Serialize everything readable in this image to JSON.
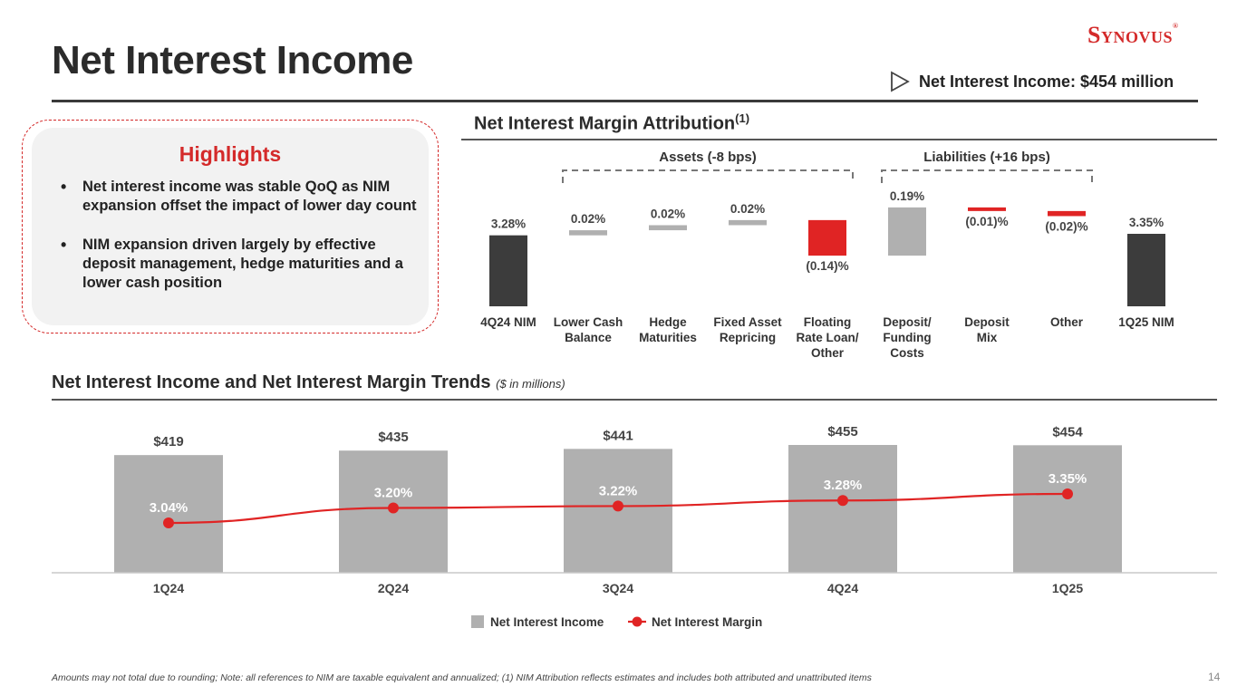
{
  "header": {
    "title": "Net Interest Income",
    "logo_text": "Synovus",
    "logo_mark": "®",
    "headline": "Net Interest Income: $454 million"
  },
  "highlights": {
    "title": "Highlights",
    "bullets": [
      "Net interest income was stable QoQ as NIM expansion offset the impact of lower day count",
      "NIM expansion driven largely by effective deposit management, hedge maturities and a lower cash position"
    ]
  },
  "attribution_section": {
    "title": "Net Interest Margin Attribution",
    "title_sup": "(1)"
  },
  "trends_section": {
    "title": "Net Interest Income and Net Interest Margin Trends",
    "note": "($ in millions)"
  },
  "chart_data": [
    {
      "type": "bar",
      "subtype": "waterfall",
      "title": "Net Interest Margin Attribution",
      "groups": [
        {
          "label": "Assets (-8 bps)",
          "from_category": 1,
          "to_category": 4
        },
        {
          "label": "Liabilities (+16 bps)",
          "from_category": 5,
          "to_category": 7
        }
      ],
      "categories": [
        [
          "4Q24 NIM"
        ],
        [
          "Lower Cash",
          "Balance"
        ],
        [
          "Hedge",
          "Maturities"
        ],
        [
          "Fixed Asset",
          "Repricing"
        ],
        [
          "Floating",
          "Rate Loan/",
          "Other"
        ],
        [
          "Deposit/",
          "Funding",
          "Costs"
        ],
        [
          "Deposit",
          "Mix"
        ],
        [
          "Other"
        ],
        [
          "1Q25 NIM"
        ]
      ],
      "values": [
        3.28,
        0.02,
        0.02,
        0.02,
        -0.14,
        0.19,
        -0.01,
        -0.02,
        3.35
      ],
      "labels": [
        "3.28%",
        "0.02%",
        "0.02%",
        "0.02%",
        "(0.14)%",
        "0.19%",
        "(0.01)%",
        "(0.02)%",
        "3.35%"
      ],
      "kinds": [
        "total",
        "delta",
        "delta",
        "delta",
        "delta",
        "delta",
        "delta",
        "delta",
        "total"
      ],
      "colors": {
        "total": "#3c3c3c",
        "positive": "#b0b0b0",
        "negative": "#e02424"
      }
    },
    {
      "type": "bar",
      "subtype": "bar_with_line",
      "title": "Net Interest Income and Net Interest Margin Trends",
      "categories": [
        "1Q24",
        "2Q24",
        "3Q24",
        "4Q24",
        "1Q25"
      ],
      "series": [
        {
          "name": "Net Interest Income",
          "kind": "bar",
          "values": [
            419,
            435,
            441,
            455,
            454
          ],
          "labels": [
            "$419",
            "$435",
            "$441",
            "$455",
            "$454"
          ],
          "color": "#b0b0b0"
        },
        {
          "name": "Net Interest Margin",
          "kind": "line",
          "values": [
            3.04,
            3.2,
            3.22,
            3.28,
            3.35
          ],
          "labels": [
            "3.04%",
            "3.20%",
            "3.22%",
            "3.28%",
            "3.35%"
          ],
          "color": "#e02424"
        }
      ],
      "legend_position": "bottom-center"
    }
  ],
  "footnote": "Amounts may not total due to rounding; Note: all references to NIM are taxable equivalent and annualized; (1) NIM Attribution reflects estimates and includes both attributed and unattributed items",
  "page_number": "14"
}
